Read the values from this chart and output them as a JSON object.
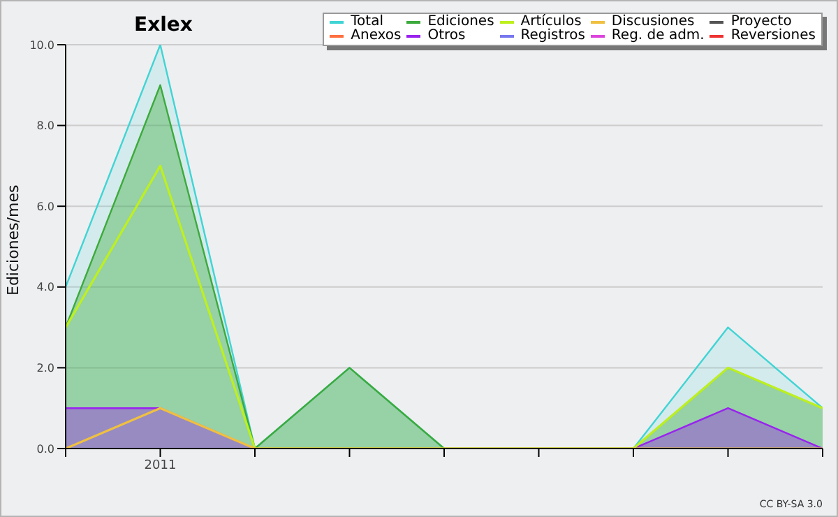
{
  "chart_data": {
    "type": "line",
    "title": "Exlex",
    "ylabel": "Ediciones/mes",
    "categories": [
      null,
      "2011",
      null,
      null,
      null,
      null,
      null,
      null,
      null
    ],
    "series": [
      {
        "name": "Total",
        "type": "area",
        "color": "#40d4d4",
        "values": [
          4,
          10,
          0,
          2,
          0,
          0,
          0,
          3,
          1
        ]
      },
      {
        "name": "Ediciones",
        "type": "area",
        "color": "#3caa3c",
        "values": [
          3,
          9,
          0,
          2,
          0,
          0,
          0,
          2,
          1
        ]
      },
      {
        "name": "Artículos",
        "color": "#bef01e",
        "values": [
          3,
          7,
          0,
          0,
          0,
          0,
          0,
          2,
          1
        ]
      },
      {
        "name": "Discusiones",
        "color": "#f0c040",
        "values": [
          0,
          1,
          0,
          0,
          0,
          0,
          0,
          0,
          0
        ]
      },
      {
        "name": "Proyecto",
        "color": "#555555",
        "values": [
          null,
          null,
          null,
          null,
          null,
          null,
          null,
          null,
          null
        ]
      },
      {
        "name": "Anexos",
        "color": "#ff7040",
        "values": [
          null,
          null,
          null,
          null,
          null,
          null,
          null,
          null,
          null
        ]
      },
      {
        "name": "Otros",
        "type": "area",
        "color": "#9922ee",
        "values": [
          1,
          1,
          0,
          null,
          null,
          null,
          0,
          1,
          0
        ]
      },
      {
        "name": "Registros",
        "color": "#7777ee",
        "values": [
          null,
          null,
          null,
          null,
          null,
          null,
          null,
          null,
          null
        ]
      },
      {
        "name": "Reg. de adm.",
        "color": "#dd44dd",
        "values": [
          null,
          null,
          null,
          null,
          null,
          null,
          null,
          null,
          null
        ]
      },
      {
        "name": "Reversiones",
        "color": "#ee3333",
        "values": [
          null,
          null,
          null,
          null,
          null,
          null,
          null,
          null,
          null
        ]
      }
    ],
    "ylim": [
      0,
      10
    ],
    "yticks": [
      {
        "value": 0,
        "label": "0.0"
      },
      {
        "value": 2,
        "label": "2.0"
      },
      {
        "value": 4,
        "label": "4.0"
      },
      {
        "value": 6,
        "label": "6.0"
      },
      {
        "value": 8,
        "label": "8.0"
      },
      {
        "value": 10,
        "label": "10.0"
      }
    ],
    "grid": "y",
    "legend": "top right",
    "annotations": [
      "CC BY-SA 3.0"
    ]
  }
}
